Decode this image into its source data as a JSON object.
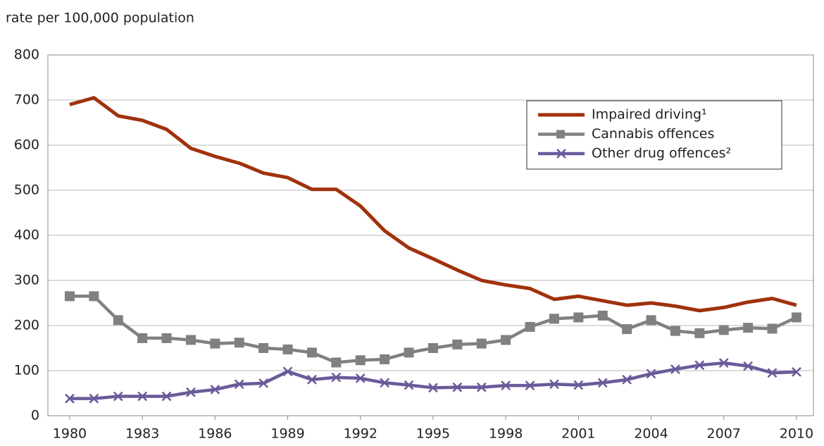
{
  "chart_data": {
    "type": "line",
    "y_axis_label": "rate per 100,000 population",
    "x": [
      1980,
      1981,
      1982,
      1983,
      1984,
      1985,
      1986,
      1987,
      1988,
      1989,
      1990,
      1991,
      1992,
      1993,
      1994,
      1995,
      1996,
      1997,
      1998,
      1999,
      2000,
      2001,
      2002,
      2003,
      2004,
      2005,
      2006,
      2007,
      2008,
      2009,
      2010
    ],
    "series": [
      {
        "name": "Impaired driving¹",
        "color": "#a0320c",
        "marker": "none",
        "values": [
          690,
          705,
          665,
          655,
          635,
          593,
          575,
          560,
          538,
          528,
          502,
          502,
          465,
          410,
          372,
          348,
          323,
          300,
          290,
          282,
          258,
          265,
          255,
          245,
          250,
          243,
          233,
          240,
          252,
          260,
          245
        ]
      },
      {
        "name": "Cannabis offences",
        "color": "#808080",
        "marker": "square",
        "values": [
          265,
          265,
          212,
          172,
          172,
          168,
          160,
          162,
          150,
          147,
          140,
          118,
          123,
          125,
          140,
          150,
          158,
          160,
          168,
          197,
          215,
          218,
          222,
          192,
          212,
          188,
          183,
          190,
          195,
          193,
          218
        ]
      },
      {
        "name": "Other drug offences²",
        "color": "#6a5a9a",
        "marker": "x",
        "values": [
          38,
          38,
          43,
          43,
          43,
          52,
          58,
          70,
          72,
          98,
          80,
          85,
          83,
          73,
          68,
          62,
          63,
          63,
          67,
          67,
          70,
          68,
          73,
          80,
          93,
          103,
          112,
          117,
          110,
          95,
          97
        ]
      }
    ],
    "xlim": [
      1979.1,
      2010.7
    ],
    "xticks": [
      1980,
      1983,
      1986,
      1989,
      1992,
      1995,
      1998,
      2001,
      2004,
      2007,
      2010
    ],
    "ylim": [
      0,
      800
    ],
    "yticks": [
      0,
      100,
      200,
      300,
      400,
      500,
      600,
      700,
      800
    ],
    "grid": true,
    "legend": "upper right"
  }
}
